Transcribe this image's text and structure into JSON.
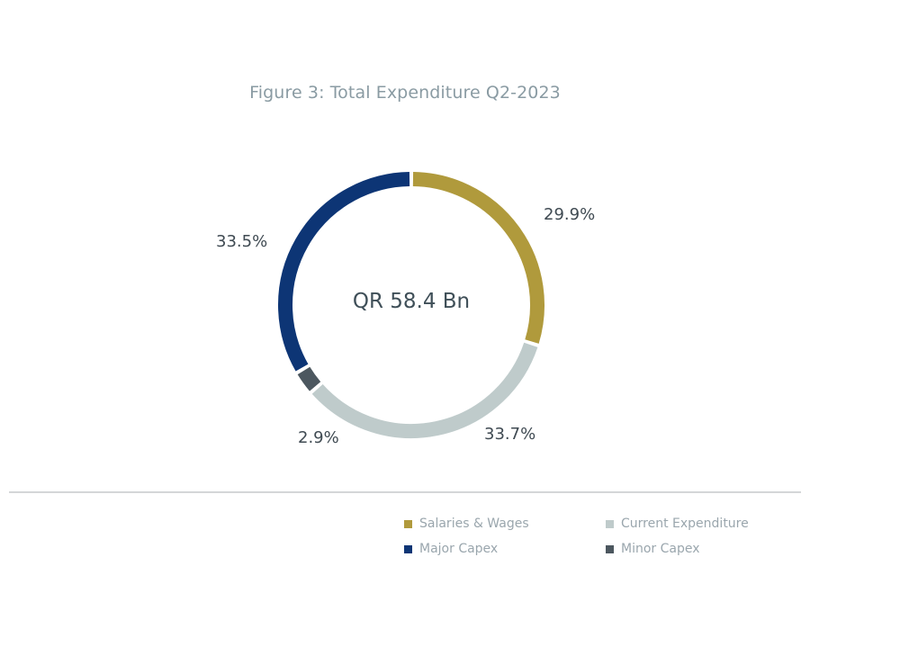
{
  "chart_data": {
    "type": "pie",
    "subtype": "donut",
    "title": "Figure 3: Total Expenditure Q2-2023",
    "center_label": "QR 58.4 Bn",
    "categories": [
      "Salaries & Wages",
      "Current Expenditure",
      "Minor Capex",
      "Major Capex"
    ],
    "values": [
      29.9,
      33.7,
      2.9,
      33.5
    ],
    "value_labels": [
      "29.9%",
      "33.7%",
      "2.9%",
      "33.5%"
    ],
    "colors": [
      "#b09a3c",
      "#bfcbcb",
      "#4c575f",
      "#0d3575"
    ],
    "unit": "%",
    "legend_position": "bottom-right",
    "legend": [
      {
        "label": "Salaries & Wages",
        "color": "#b09a3c"
      },
      {
        "label": "Current Expenditure",
        "color": "#bfcbcb"
      },
      {
        "label": "Major Capex",
        "color": "#0d3575"
      },
      {
        "label": "Minor Capex",
        "color": "#4c575f"
      }
    ]
  }
}
